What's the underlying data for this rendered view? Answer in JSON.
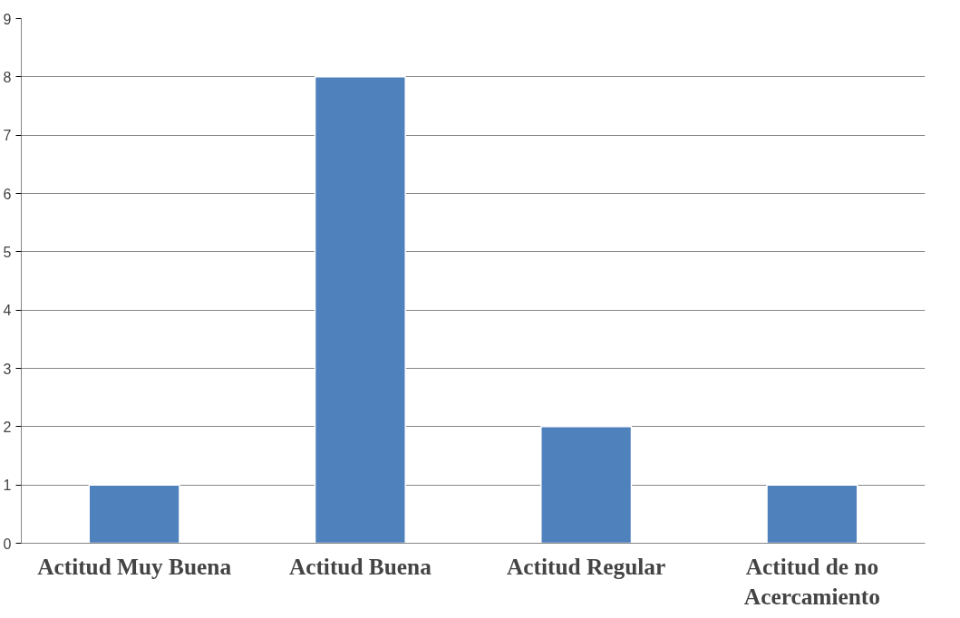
{
  "chart_data": {
    "type": "bar",
    "categories": [
      "Actitud Muy Buena",
      "Actitud Buena",
      "Actitud Regular",
      "Actitud de no Acercamiento"
    ],
    "values": [
      1,
      8,
      2,
      1
    ],
    "color": "#4f81bd",
    "ylim": [
      0,
      9
    ],
    "yticks": [
      0,
      1,
      2,
      3,
      4,
      5,
      6,
      7,
      8,
      9
    ],
    "grid": "y"
  }
}
